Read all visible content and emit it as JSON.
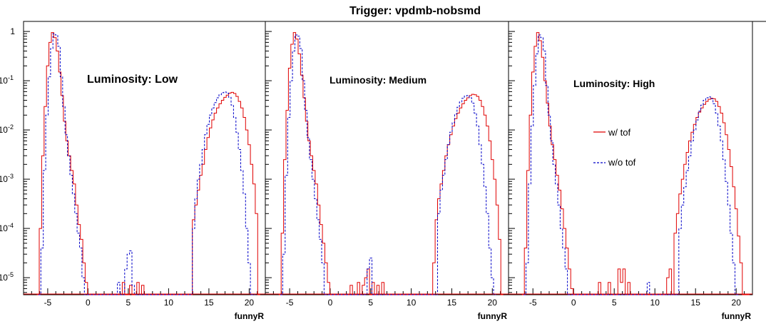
{
  "title": "Trigger: vpdmb-nobsmd",
  "legend": {
    "with_tof": "w/ tof",
    "without_tof": "w/o tof"
  },
  "colors": {
    "with_tof": "#e00000",
    "without_tof": "#0000c8"
  },
  "chart_data": [
    {
      "type": "line",
      "step": true,
      "annotation": "Luminosity: Low",
      "xlabel": "funnyR",
      "ylabel": "",
      "yscale": "log",
      "xlim": [
        -8,
        22
      ],
      "ylim": [
        4.5e-06,
        1.6
      ],
      "xticks": [
        "-5",
        "0",
        "5",
        "10",
        "15",
        "20"
      ],
      "yticks": [
        "10^-5",
        "10^-4",
        "10^-3",
        "10^-2",
        "10^-1",
        "1"
      ],
      "series": [
        {
          "name": "w/ tof",
          "x": [
            -6.2,
            -5.9,
            -5.6,
            -5.3,
            -5.0,
            -4.7,
            -4.4,
            -4.1,
            -3.8,
            -3.5,
            -3.2,
            -2.9,
            -2.6,
            -2.3,
            -2.0,
            -1.7,
            -1.4,
            -1.1,
            -0.8,
            -0.5,
            -0.2,
            0.1,
            4.4,
            4.7,
            5.3,
            6.2,
            6.8,
            7.1,
            13.1,
            13.4,
            13.7,
            14.0,
            14.3,
            14.6,
            14.9,
            15.2,
            15.5,
            15.8,
            16.1,
            16.4,
            16.7,
            17.0,
            17.3,
            17.6,
            17.9,
            18.2,
            18.5,
            18.8,
            19.1,
            19.4,
            19.7,
            20.0,
            20.3,
            20.6,
            20.9,
            21.2
          ],
          "y": [
            4.5e-06,
            0.0001,
            0.003,
            0.03,
            0.2,
            0.6,
            0.95,
            0.75,
            0.4,
            0.15,
            0.05,
            0.015,
            0.006,
            0.003,
            0.0015,
            0.0008,
            0.0003,
            0.00012,
            6e-05,
            2e-05,
            8e-06,
            4.5e-06,
            8e-06,
            4.5e-06,
            7e-06,
            8e-06,
            7e-06,
            4.5e-06,
            0.00015,
            0.0003,
            0.0006,
            0.0012,
            0.002,
            0.004,
            0.007,
            0.011,
            0.016,
            0.022,
            0.028,
            0.034,
            0.04,
            0.046,
            0.051,
            0.056,
            0.058,
            0.055,
            0.048,
            0.038,
            0.028,
            0.018,
            0.01,
            0.005,
            0.002,
            0.0008,
            0.0002,
            4.5e-06
          ]
        },
        {
          "name": "w/o tof",
          "x": [
            -6.0,
            -5.7,
            -5.4,
            -5.1,
            -4.8,
            -4.5,
            -4.2,
            -3.9,
            -3.6,
            -3.3,
            -3.0,
            -2.7,
            -2.4,
            -2.1,
            -1.8,
            -1.5,
            -1.2,
            -0.9,
            -0.6,
            0.0,
            3.8,
            4.1,
            4.7,
            5.0,
            5.3,
            5.6,
            6.5,
            13.1,
            13.4,
            13.7,
            14.0,
            14.3,
            14.6,
            14.9,
            15.2,
            15.5,
            15.8,
            16.1,
            16.4,
            16.7,
            17.0,
            17.3,
            17.6,
            17.9,
            18.2,
            18.5,
            18.8,
            19.1,
            19.4,
            19.7,
            20.0,
            20.6
          ],
          "y": [
            4.5e-06,
            4e-05,
            0.0015,
            0.02,
            0.12,
            0.45,
            0.9,
            0.85,
            0.5,
            0.12,
            0.03,
            0.008,
            0.003,
            0.0012,
            0.0005,
            0.0002,
            8e-05,
            4e-05,
            1e-05,
            4.5e-06,
            8e-06,
            4.5e-06,
            1.5e-05,
            3e-05,
            3.5e-05,
            7e-06,
            4.5e-06,
            0.0001,
            0.0004,
            0.001,
            0.002,
            0.004,
            0.008,
            0.013,
            0.02,
            0.028,
            0.036,
            0.045,
            0.052,
            0.057,
            0.059,
            0.056,
            0.046,
            0.032,
            0.018,
            0.009,
            0.004,
            0.0015,
            0.0005,
            0.0001,
            2e-05,
            4.5e-06
          ]
        }
      ]
    },
    {
      "type": "line",
      "step": true,
      "annotation": "Luminosity: Medium",
      "xlabel": "funnyR",
      "ylabel": "",
      "yscale": "log",
      "xlim": [
        -8,
        22
      ],
      "ylim": [
        4.5e-06,
        1.6
      ],
      "xticks": [
        "-5",
        "0",
        "5",
        "10",
        "15",
        "20"
      ],
      "yticks": [],
      "series": [
        {
          "name": "w/ tof",
          "x": [
            -6.2,
            -5.9,
            -5.6,
            -5.3,
            -5.0,
            -4.7,
            -4.4,
            -4.1,
            -3.8,
            -3.5,
            -3.2,
            -2.9,
            -2.6,
            -2.3,
            -2.0,
            -1.7,
            -1.4,
            -1.1,
            -0.8,
            -0.5,
            -0.2,
            0.1,
            2.6,
            2.9,
            3.5,
            4.1,
            4.4,
            4.7,
            5.3,
            5.9,
            6.5,
            6.8,
            12.8,
            13.1,
            13.4,
            13.7,
            14.0,
            14.3,
            14.6,
            14.9,
            15.2,
            15.5,
            15.8,
            16.1,
            16.4,
            16.7,
            17.0,
            17.3,
            17.6,
            17.9,
            18.2,
            18.5,
            18.8,
            19.1,
            19.4,
            19.7,
            20.0,
            20.3,
            20.6,
            20.9,
            21.2
          ],
          "y": [
            4.5e-06,
            8e-05,
            0.0025,
            0.025,
            0.18,
            0.55,
            0.95,
            0.7,
            0.35,
            0.13,
            0.045,
            0.015,
            0.006,
            0.003,
            0.0015,
            0.0008,
            0.0003,
            0.00012,
            5e-05,
            2e-05,
            8e-06,
            4.5e-06,
            7e-06,
            4.5e-06,
            8e-06,
            7e-06,
            1e-05,
            1.5e-05,
            8e-06,
            7e-06,
            8e-06,
            4.5e-06,
            2e-05,
            0.00015,
            0.0004,
            0.0008,
            0.0015,
            0.003,
            0.005,
            0.008,
            0.012,
            0.017,
            0.022,
            0.028,
            0.034,
            0.04,
            0.045,
            0.05,
            0.053,
            0.052,
            0.048,
            0.04,
            0.03,
            0.02,
            0.012,
            0.006,
            0.0025,
            0.001,
            0.0003,
            6e-05,
            4.5e-06
          ]
        },
        {
          "name": "w/o tof",
          "x": [
            -6.0,
            -5.7,
            -5.4,
            -5.1,
            -4.8,
            -4.5,
            -4.2,
            -3.9,
            -3.6,
            -3.3,
            -3.0,
            -2.7,
            -2.4,
            -2.1,
            -1.8,
            -1.5,
            -1.2,
            -0.9,
            0.0,
            4.7,
            5.0,
            5.6,
            13.4,
            13.7,
            14.0,
            14.3,
            14.6,
            14.9,
            15.2,
            15.5,
            15.8,
            16.1,
            16.4,
            16.7,
            17.0,
            17.3,
            17.6,
            17.9,
            18.2,
            18.5,
            18.8,
            19.1,
            19.4,
            19.7,
            20.0,
            20.3
          ],
          "y": [
            4.5e-06,
            3e-05,
            0.0012,
            0.018,
            0.1,
            0.4,
            0.85,
            0.8,
            0.45,
            0.1,
            0.025,
            0.007,
            0.0025,
            0.001,
            0.0004,
            0.00015,
            6e-05,
            2e-05,
            4.5e-06,
            1.5e-05,
            2.5e-05,
            4.5e-06,
            0.0002,
            0.0006,
            0.0012,
            0.0025,
            0.005,
            0.009,
            0.014,
            0.021,
            0.029,
            0.037,
            0.044,
            0.049,
            0.05,
            0.045,
            0.035,
            0.022,
            0.012,
            0.005,
            0.002,
            0.0007,
            0.0002,
            4e-05,
            1e-05,
            4.5e-06
          ]
        }
      ]
    },
    {
      "type": "line",
      "step": true,
      "annotation": "Luminosity: High",
      "xlabel": "funnyR",
      "ylabel": "",
      "yscale": "log",
      "xlim": [
        -8,
        22
      ],
      "ylim": [
        4.5e-06,
        1.6
      ],
      "xticks": [
        "-5",
        "0",
        "5",
        "10",
        "15",
        "20"
      ],
      "yticks": [],
      "series": [
        {
          "name": "w/ tof",
          "x": [
            -6.2,
            -5.9,
            -5.6,
            -5.3,
            -5.0,
            -4.7,
            -4.4,
            -4.1,
            -3.8,
            -3.5,
            -3.2,
            -2.9,
            -2.6,
            -2.3,
            -2.0,
            -1.7,
            -1.4,
            -1.1,
            -0.8,
            -0.5,
            -0.2,
            0.1,
            3.2,
            3.5,
            4.4,
            4.7,
            5.6,
            5.9,
            6.2,
            6.5,
            6.8,
            7.1,
            11.6,
            11.9,
            12.2,
            12.5,
            12.8,
            13.1,
            13.4,
            13.7,
            14.0,
            14.3,
            14.6,
            14.9,
            15.2,
            15.5,
            15.8,
            16.1,
            16.4,
            16.7,
            17.0,
            17.3,
            17.6,
            17.9,
            18.2,
            18.5,
            18.8,
            19.1,
            19.4,
            19.7,
            20.0,
            20.3,
            20.6,
            20.9,
            21.2,
            21.5
          ],
          "y": [
            4.5e-06,
            4e-05,
            0.0015,
            0.02,
            0.15,
            0.5,
            0.95,
            0.65,
            0.3,
            0.1,
            0.035,
            0.012,
            0.005,
            0.0025,
            0.0012,
            0.0006,
            0.00025,
            0.0001,
            4e-05,
            1.5e-05,
            6e-06,
            4.5e-06,
            8e-06,
            4.5e-06,
            8e-06,
            4.5e-06,
            1.5e-05,
            8e-06,
            1.5e-05,
            4.5e-06,
            8e-06,
            4.5e-06,
            1e-05,
            1.5e-05,
            4.5e-06,
            8e-05,
            0.0002,
            0.0005,
            0.001,
            0.002,
            0.0035,
            0.006,
            0.009,
            0.013,
            0.018,
            0.023,
            0.028,
            0.033,
            0.038,
            0.042,
            0.044,
            0.043,
            0.038,
            0.03,
            0.022,
            0.014,
            0.008,
            0.004,
            0.0018,
            0.0007,
            0.00025,
            7e-05,
            2e-05,
            4.5e-06,
            4.5e-06,
            4.5e-06
          ]
        },
        {
          "name": "w/o tof",
          "x": [
            -6.0,
            -5.7,
            -5.4,
            -5.1,
            -4.8,
            -4.5,
            -4.2,
            -3.9,
            -3.6,
            -3.3,
            -3.0,
            -2.7,
            -2.4,
            -2.1,
            -1.8,
            -1.5,
            -1.2,
            -0.9,
            0.0,
            9.2,
            9.5,
            13.1,
            13.4,
            13.7,
            14.0,
            14.3,
            14.6,
            14.9,
            15.2,
            15.5,
            15.8,
            16.1,
            16.4,
            16.7,
            17.0,
            17.3,
            17.6,
            17.9,
            18.2,
            18.5,
            18.8,
            19.1,
            19.4,
            19.7,
            20.3
          ],
          "y": [
            4.5e-06,
            2e-05,
            0.0008,
            0.012,
            0.08,
            0.35,
            0.85,
            0.75,
            0.4,
            0.08,
            0.02,
            0.006,
            0.002,
            0.0008,
            0.0003,
            0.0001,
            4e-05,
            1.5e-05,
            4.5e-06,
            8e-06,
            4.5e-06,
            0.0001,
            0.0003,
            0.0007,
            0.0015,
            0.003,
            0.006,
            0.01,
            0.016,
            0.024,
            0.032,
            0.04,
            0.045,
            0.047,
            0.043,
            0.034,
            0.022,
            0.012,
            0.006,
            0.0025,
            0.0009,
            0.0003,
            8e-05,
            2e-05,
            4.5e-06
          ]
        }
      ]
    }
  ]
}
